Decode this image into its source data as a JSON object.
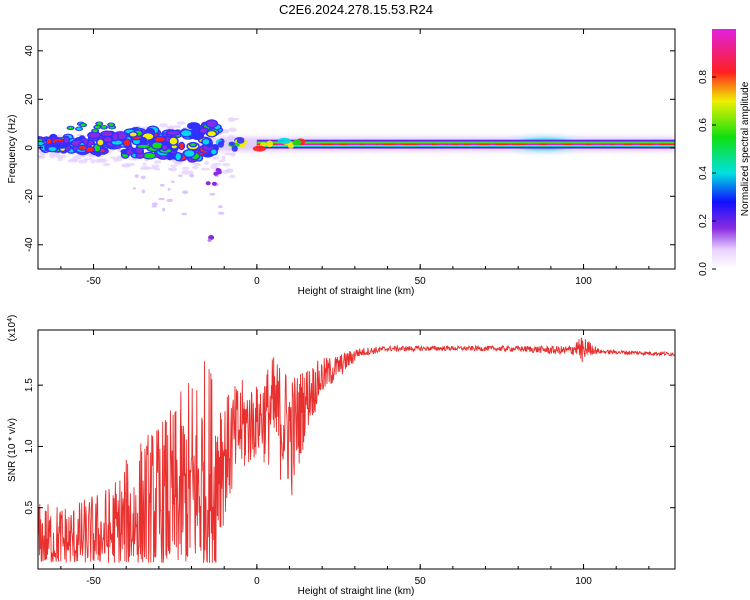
{
  "title": "C2E6.2024.278.15.53.R24",
  "chart_data": [
    {
      "type": "heatmap",
      "xlabel": "Height of straight line (km)",
      "ylabel": "Frequency (Hz)",
      "xlim": [
        -67,
        128
      ],
      "ylim": [
        -50,
        49
      ],
      "xticks": [
        -50,
        0,
        50,
        100
      ],
      "yticks": [
        -40,
        -20,
        0,
        20,
        40
      ],
      "colorbar": {
        "label": "Normalized spectral amplitude",
        "range": [
          0,
          1
        ],
        "ticks": [
          0.0,
          0.2,
          0.4,
          0.6,
          0.8
        ]
      },
      "features": {
        "main_band_hz": 1.5,
        "main_band_width_hz": 3,
        "main_band_from_km": 0,
        "main_band_to_km": 128,
        "broad_scatter_from_km": -67,
        "broad_scatter_to_km": -12,
        "scatter_freq_range_hz": [
          -15,
          12
        ],
        "isolated_blob": {
          "x_km": -14,
          "y_hz": -37
        }
      }
    },
    {
      "type": "line",
      "xlabel": "Height of straight line (km)",
      "ylabel": "SNR (10 * v/v)",
      "y_multiplier": "(x10^4)",
      "xlim": [
        -67,
        128
      ],
      "ylim": [
        0,
        1.95
      ],
      "xticks": [
        -50,
        0,
        50,
        100
      ],
      "yticks": [
        0.5,
        1.0,
        1.5
      ],
      "ytick_labels": [
        "0.5",
        "1.0",
        "1.5"
      ],
      "series": [
        {
          "color": "#e8302f",
          "envelope": [
            {
              "x": -67,
              "low": 0.05,
              "high": 0.55
            },
            {
              "x": -55,
              "low": 0.05,
              "high": 0.55
            },
            {
              "x": -45,
              "low": 0.05,
              "high": 0.7
            },
            {
              "x": -35,
              "low": 0.05,
              "high": 1.1
            },
            {
              "x": -25,
              "low": 0.05,
              "high": 1.35
            },
            {
              "x": -18,
              "low": 0.05,
              "high": 1.75
            },
            {
              "x": -12,
              "low": 0.05,
              "high": 1.75
            },
            {
              "x": -10,
              "low": 0.4,
              "high": 1.4
            },
            {
              "x": -5,
              "low": 0.7,
              "high": 1.55
            },
            {
              "x": 0,
              "low": 0.9,
              "high": 1.5
            },
            {
              "x": 5,
              "low": 0.8,
              "high": 1.75
            },
            {
              "x": 11,
              "low": 0.55,
              "high": 1.6
            },
            {
              "x": 15,
              "low": 1.1,
              "high": 1.65
            },
            {
              "x": 20,
              "low": 1.4,
              "high": 1.72
            },
            {
              "x": 25,
              "low": 1.55,
              "high": 1.75
            },
            {
              "x": 30,
              "low": 1.68,
              "high": 1.8
            },
            {
              "x": 40,
              "low": 1.75,
              "high": 1.82
            },
            {
              "x": 60,
              "low": 1.76,
              "high": 1.82
            },
            {
              "x": 80,
              "low": 1.75,
              "high": 1.82
            },
            {
              "x": 95,
              "low": 1.7,
              "high": 1.82
            },
            {
              "x": 100,
              "low": 1.65,
              "high": 1.9
            },
            {
              "x": 105,
              "low": 1.74,
              "high": 1.79
            },
            {
              "x": 128,
              "low": 1.72,
              "high": 1.77
            }
          ]
        }
      ]
    }
  ]
}
